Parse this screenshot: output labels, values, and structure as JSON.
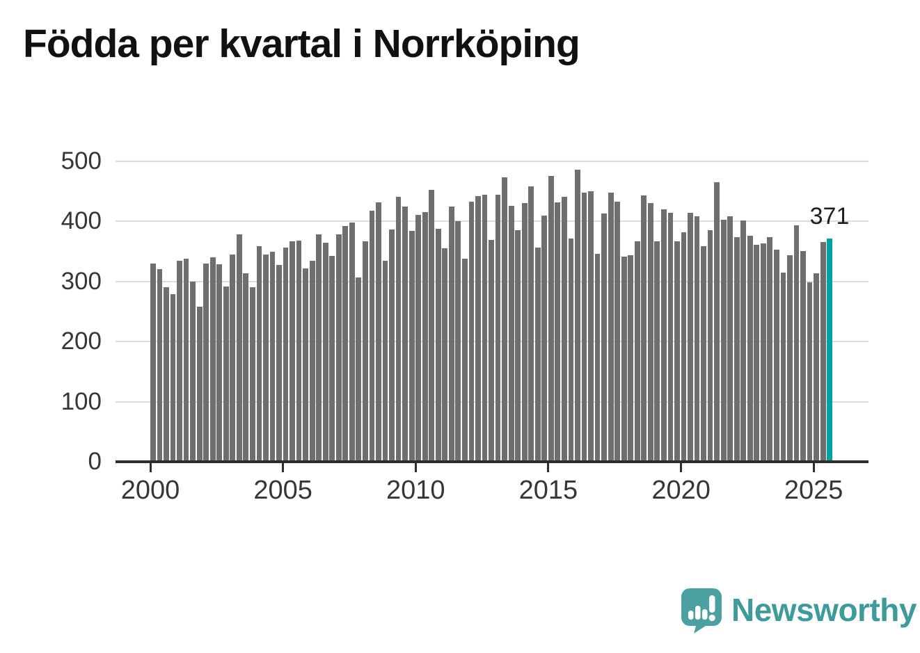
{
  "page": {
    "title": "Födda per kvartal i Norrköping"
  },
  "annotation": {
    "last_value": "371"
  },
  "logo": {
    "text": "Newsworthy",
    "icon": "newsworthy-speech-bubble-bar-chart-icon"
  },
  "colors": {
    "bar": "#6F6F6F",
    "highlight": "#00A2A2",
    "gridline": "#DBDBDB",
    "axis": "#2E2E2E",
    "title_text": "#111111",
    "tick_text": "#363636",
    "annotation_text": "#1D1D1D",
    "logo_text": "#3E9B9C",
    "logo_icon": "#4BA1A2",
    "background": "#FFFFFF"
  },
  "chart_data": {
    "type": "bar",
    "title": "Födda per kvartal i Norrköping",
    "x_unit": "quarter",
    "start_period": "2000-Q1",
    "end_period": "2025-Q3",
    "ylim": [
      0,
      500
    ],
    "y_tick_labels": [
      "0",
      "100",
      "200",
      "300",
      "400",
      "500"
    ],
    "x_tick_labels": [
      "2000",
      "2005",
      "2010",
      "2015",
      "2020",
      "2025"
    ],
    "x_tick_quarter_indices": [
      0,
      20,
      40,
      60,
      80,
      100
    ],
    "grid": "horizontal",
    "legend_position": "none",
    "highlight": {
      "index": 102,
      "period": "2025-Q3",
      "value": 371,
      "label": "371"
    },
    "series": [
      {
        "name": "Födda per kvartal",
        "values": [
          330,
          321,
          291,
          279,
          335,
          338,
          300,
          258,
          330,
          340,
          329,
          292,
          345,
          378,
          314,
          290,
          359,
          345,
          350,
          327,
          357,
          367,
          368,
          322,
          334,
          379,
          365,
          343,
          378,
          392,
          398,
          307,
          367,
          418,
          432,
          334,
          387,
          441,
          425,
          384,
          411,
          416,
          452,
          388,
          355,
          425,
          401,
          338,
          433,
          442,
          444,
          369,
          444,
          473,
          426,
          386,
          431,
          458,
          357,
          410,
          476,
          432,
          441,
          371,
          486,
          448,
          450,
          346,
          413,
          448,
          433,
          341,
          344,
          367,
          443,
          430,
          367,
          420,
          414,
          367,
          382,
          414,
          409,
          359,
          386,
          465,
          403,
          409,
          374,
          402,
          376,
          361,
          364,
          374,
          353,
          315,
          344,
          393,
          351,
          299,
          314,
          366,
          371
        ]
      }
    ]
  }
}
